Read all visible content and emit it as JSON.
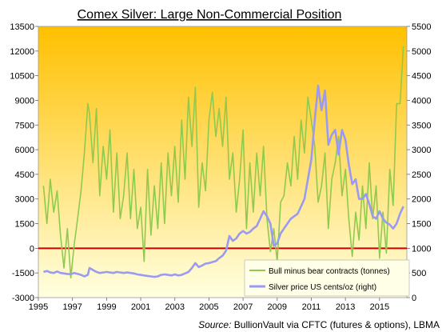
{
  "chart_data": {
    "type": "line",
    "title": "Comex Silver: Large Non-Commercial Position",
    "source_prefix": "Source:",
    "source_text": "BullionVault via CFTC (futures & options), LBMA",
    "x_ticks": [
      "1995",
      "1997",
      "1999",
      "2001",
      "2003",
      "2005",
      "2007",
      "2009",
      "2011",
      "2013",
      "2015"
    ],
    "y_left_ticks": [
      "-3000",
      "-1500",
      "0",
      "1500",
      "3000",
      "4500",
      "6000",
      "7500",
      "9000",
      "10500",
      "12000",
      "13500"
    ],
    "y_right_ticks": [
      "0",
      "500",
      "1000",
      "1500",
      "2000",
      "2500",
      "3000",
      "3500",
      "4000",
      "4500",
      "5000",
      "5500"
    ],
    "ylim_left": [
      -3000,
      13500
    ],
    "ylim_right": [
      0,
      5500
    ],
    "xlim": [
      1995,
      2016.6
    ],
    "grid": false,
    "legend_position": "bottom-right",
    "colors": {
      "bull_line": "#8fca4f",
      "silver_line": "#9a9af2",
      "zero_line": "#cc0000",
      "bg_top": "#ffc000",
      "bg_bottom": "#ffffe0"
    },
    "series": [
      {
        "name": "Bull minus bear contracts (tonnes)",
        "axis": "left",
        "x": [
          1995.3,
          1995.5,
          1995.7,
          1995.9,
          1996.1,
          1996.3,
          1996.5,
          1996.7,
          1996.9,
          1997.1,
          1997.3,
          1997.5,
          1997.7,
          1997.9,
          1998.0,
          1998.2,
          1998.4,
          1998.6,
          1998.8,
          1999.0,
          1999.2,
          1999.4,
          1999.6,
          1999.8,
          2000.0,
          2000.2,
          2000.4,
          2000.6,
          2000.8,
          2001.0,
          2001.2,
          2001.4,
          2001.6,
          2001.8,
          2002.0,
          2002.2,
          2002.4,
          2002.6,
          2002.8,
          2003.0,
          2003.2,
          2003.4,
          2003.6,
          2003.8,
          2004.0,
          2004.2,
          2004.4,
          2004.6,
          2004.8,
          2005.0,
          2005.2,
          2005.4,
          2005.6,
          2005.8,
          2006.0,
          2006.2,
          2006.4,
          2006.6,
          2006.8,
          2007.0,
          2007.2,
          2007.4,
          2007.6,
          2007.8,
          2008.0,
          2008.2,
          2008.4,
          2008.6,
          2008.8,
          2009.0,
          2009.2,
          2009.4,
          2009.6,
          2009.8,
          2010.0,
          2010.2,
          2010.4,
          2010.6,
          2010.8,
          2011.0,
          2011.2,
          2011.4,
          2011.6,
          2011.8,
          2012.0,
          2012.2,
          2012.4,
          2012.6,
          2012.8,
          2013.0,
          2013.2,
          2013.4,
          2013.6,
          2013.8,
          2014.0,
          2014.2,
          2014.4,
          2014.6,
          2014.8,
          2015.0,
          2015.2,
          2015.4,
          2015.6,
          2015.8,
          2016.0,
          2016.2,
          2016.4
        ],
        "values": [
          3800,
          1500,
          4200,
          2200,
          3500,
          800,
          -1200,
          1200,
          -1800,
          200,
          1800,
          3500,
          5800,
          8800,
          8200,
          5200,
          8500,
          3200,
          6200,
          4200,
          7200,
          2200,
          5800,
          1800,
          3200,
          5800,
          1800,
          4800,
          1200,
          2500,
          -800,
          4800,
          800,
          3800,
          1200,
          5200,
          1500,
          5800,
          3200,
          6200,
          2800,
          7800,
          4200,
          9200,
          6200,
          9800,
          2500,
          5200,
          3500,
          7800,
          9500,
          6800,
          8500,
          6200,
          9200,
          4200,
          5800,
          2200,
          4200,
          7200,
          1200,
          5200,
          2200,
          5800,
          3200,
          6200,
          1800,
          -200,
          1200,
          -800,
          2800,
          3200,
          5200,
          3800,
          6800,
          4200,
          7800,
          5800,
          9200,
          7800,
          6200,
          2800,
          3800,
          5800,
          1200,
          4200,
          5200,
          6800,
          3200,
          4800,
          1800,
          -500,
          2200,
          500,
          3800,
          1200,
          5200,
          1800,
          3800,
          -600,
          2200,
          -300,
          4800,
          2600,
          8800,
          8800,
          12300
        ]
      },
      {
        "name": "Silver price US cents/oz (right)",
        "axis": "right",
        "x": [
          1995.3,
          1995.5,
          1995.7,
          1995.9,
          1996.1,
          1996.3,
          1996.5,
          1996.7,
          1996.9,
          1997.1,
          1997.3,
          1997.5,
          1997.7,
          1997.9,
          1998.0,
          1998.2,
          1998.4,
          1998.6,
          1998.8,
          1999.0,
          1999.2,
          1999.4,
          1999.6,
          1999.8,
          2000.0,
          2000.2,
          2000.4,
          2000.6,
          2000.8,
          2001.0,
          2001.2,
          2001.4,
          2001.6,
          2001.8,
          2002.0,
          2002.2,
          2002.4,
          2002.6,
          2002.8,
          2003.0,
          2003.2,
          2003.4,
          2003.6,
          2003.8,
          2004.0,
          2004.2,
          2004.4,
          2004.6,
          2004.8,
          2005.0,
          2005.2,
          2005.4,
          2005.6,
          2005.8,
          2006.0,
          2006.2,
          2006.4,
          2006.6,
          2006.8,
          2007.0,
          2007.2,
          2007.4,
          2007.6,
          2007.8,
          2008.0,
          2008.2,
          2008.4,
          2008.6,
          2008.8,
          2009.0,
          2009.2,
          2009.4,
          2009.6,
          2009.8,
          2010.0,
          2010.2,
          2010.4,
          2010.6,
          2010.8,
          2011.0,
          2011.2,
          2011.4,
          2011.6,
          2011.8,
          2012.0,
          2012.2,
          2012.4,
          2012.6,
          2012.8,
          2013.0,
          2013.2,
          2013.4,
          2013.6,
          2013.8,
          2014.0,
          2014.2,
          2014.4,
          2014.6,
          2014.8,
          2015.0,
          2015.2,
          2015.4,
          2015.6,
          2015.8,
          2016.0,
          2016.2,
          2016.4
        ],
        "values": [
          520,
          540,
          510,
          500,
          530,
          500,
          490,
          480,
          475,
          500,
          480,
          460,
          430,
          460,
          600,
          560,
          520,
          500,
          510,
          520,
          510,
          500,
          520,
          510,
          500,
          510,
          500,
          490,
          470,
          460,
          450,
          440,
          430,
          420,
          430,
          460,
          470,
          460,
          450,
          470,
          450,
          460,
          490,
          520,
          600,
          700,
          620,
          650,
          690,
          700,
          720,
          740,
          800,
          850,
          950,
          1250,
          1150,
          1200,
          1300,
          1350,
          1300,
          1330,
          1400,
          1450,
          1600,
          1750,
          1650,
          1500,
          1050,
          1100,
          1300,
          1400,
          1500,
          1600,
          1650,
          1700,
          1850,
          2000,
          2400,
          2800,
          3600,
          4300,
          3800,
          4200,
          3100,
          3300,
          3400,
          2900,
          3400,
          3200,
          2700,
          2300,
          2400,
          2000,
          2000,
          2100,
          1900,
          1650,
          1600,
          1750,
          1600,
          1520,
          1480,
          1400,
          1500,
          1700,
          1850
        ]
      }
    ]
  }
}
